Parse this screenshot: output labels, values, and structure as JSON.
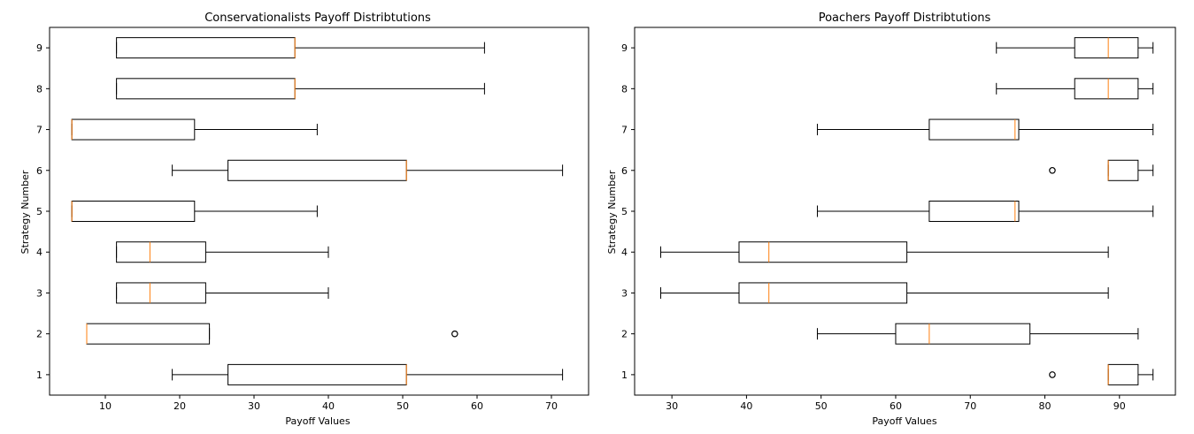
{
  "colors": {
    "box_edge": "#000000",
    "median": "#ff7f0e",
    "background": "#ffffff",
    "outlier": "#000000"
  },
  "chart_data": [
    {
      "type": "boxplot",
      "orientation": "horizontal",
      "title": "Conservationalists Payoff Distribtutions",
      "xlabel": "Payoff Values",
      "ylabel": "Strategy Number",
      "xlim": [
        2.5,
        75
      ],
      "ylim": [
        0.5,
        9.5
      ],
      "xticks": [
        10,
        20,
        30,
        40,
        50,
        60,
        70
      ],
      "yticks": [
        1,
        2,
        3,
        4,
        5,
        6,
        7,
        8,
        9
      ],
      "grid": false,
      "boxes": [
        {
          "strategy": 1,
          "whislo": 19,
          "q1": 26.5,
          "med": 50.5,
          "q3": 50.5,
          "whishi": 71.5,
          "fliers": []
        },
        {
          "strategy": 2,
          "whislo": 7.5,
          "q1": 7.5,
          "med": 7.5,
          "q3": 24,
          "whishi": 24,
          "fliers": [
            57
          ]
        },
        {
          "strategy": 3,
          "whislo": 11.5,
          "q1": 11.5,
          "med": 16,
          "q3": 23.5,
          "whishi": 40,
          "fliers": []
        },
        {
          "strategy": 4,
          "whislo": 11.5,
          "q1": 11.5,
          "med": 16,
          "q3": 23.5,
          "whishi": 40,
          "fliers": []
        },
        {
          "strategy": 5,
          "whislo": 5.5,
          "q1": 5.5,
          "med": 5.5,
          "q3": 22,
          "whishi": 38.5,
          "fliers": []
        },
        {
          "strategy": 6,
          "whislo": 19,
          "q1": 26.5,
          "med": 50.5,
          "q3": 50.5,
          "whishi": 71.5,
          "fliers": []
        },
        {
          "strategy": 7,
          "whislo": 5.5,
          "q1": 5.5,
          "med": 5.5,
          "q3": 22,
          "whishi": 38.5,
          "fliers": []
        },
        {
          "strategy": 8,
          "whislo": 11.5,
          "q1": 11.5,
          "med": 35.5,
          "q3": 35.5,
          "whishi": 61,
          "fliers": []
        },
        {
          "strategy": 9,
          "whislo": 11.5,
          "q1": 11.5,
          "med": 35.5,
          "q3": 35.5,
          "whishi": 61,
          "fliers": []
        }
      ]
    },
    {
      "type": "boxplot",
      "orientation": "horizontal",
      "title": "Poachers Payoff Distribtutions",
      "xlabel": "Payoff Values",
      "ylabel": "Strategy Number",
      "xlim": [
        25,
        97.5
      ],
      "ylim": [
        0.5,
        9.5
      ],
      "xticks": [
        30,
        40,
        50,
        60,
        70,
        80,
        90
      ],
      "yticks": [
        1,
        2,
        3,
        4,
        5,
        6,
        7,
        8,
        9
      ],
      "grid": false,
      "boxes": [
        {
          "strategy": 1,
          "whislo": 88.5,
          "q1": 88.5,
          "med": 88.5,
          "q3": 92.5,
          "whishi": 94.5,
          "fliers": [
            81
          ]
        },
        {
          "strategy": 2,
          "whislo": 49.5,
          "q1": 60,
          "med": 64.5,
          "q3": 78,
          "whishi": 92.5,
          "fliers": []
        },
        {
          "strategy": 3,
          "whislo": 28.5,
          "q1": 39,
          "med": 43,
          "q3": 61.5,
          "whishi": 88.5,
          "fliers": []
        },
        {
          "strategy": 4,
          "whislo": 28.5,
          "q1": 39,
          "med": 43,
          "q3": 61.5,
          "whishi": 88.5,
          "fliers": []
        },
        {
          "strategy": 5,
          "whislo": 49.5,
          "q1": 64.5,
          "med": 76,
          "q3": 76.5,
          "whishi": 94.5,
          "fliers": []
        },
        {
          "strategy": 6,
          "whislo": 88.5,
          "q1": 88.5,
          "med": 88.5,
          "q3": 92.5,
          "whishi": 94.5,
          "fliers": [
            81
          ]
        },
        {
          "strategy": 7,
          "whislo": 49.5,
          "q1": 64.5,
          "med": 76,
          "q3": 76.5,
          "whishi": 94.5,
          "fliers": []
        },
        {
          "strategy": 8,
          "whislo": 73.5,
          "q1": 84,
          "med": 88.5,
          "q3": 92.5,
          "whishi": 94.5,
          "fliers": []
        },
        {
          "strategy": 9,
          "whislo": 73.5,
          "q1": 84,
          "med": 88.5,
          "q3": 92.5,
          "whishi": 94.5,
          "fliers": []
        }
      ]
    }
  ]
}
